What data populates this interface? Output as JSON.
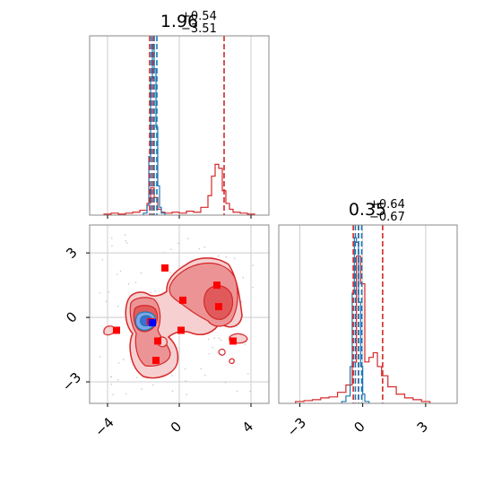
{
  "colors": {
    "red": "#d62728",
    "red_fill_dark": "#e05a5c",
    "red_fill_mid": "#ec9495",
    "red_fill_light": "#f6cfd0",
    "blue": "#1f77b4",
    "blue_fill_dark": "#3a6fd8",
    "blue_fill_light": "#7aa7e8",
    "marker_red": "#ff0000",
    "marker_blue": "#0000ff",
    "grid": "#cccccc",
    "frame": "#888888"
  },
  "chart_data": [
    {
      "type": "histogram",
      "panel": "top-left",
      "title_value": "1.96",
      "title_plus": "+0.54",
      "title_minus": "−3.51",
      "xlim": [
        -5,
        5
      ],
      "xticks": [
        -4,
        0,
        4
      ],
      "series": [
        {
          "color": "red",
          "bin_edges": [
            -4.2,
            -3.8,
            -3.4,
            -3.0,
            -2.6,
            -2.2,
            -1.8,
            -1.6,
            -1.4,
            -1.2,
            -1.0,
            -0.8,
            -0.4,
            0.0,
            0.4,
            0.8,
            1.2,
            1.6,
            1.8,
            2.0,
            2.2,
            2.4,
            2.6,
            2.8,
            3.0,
            3.4,
            3.8,
            4.2
          ],
          "counts": [
            1,
            2,
            1,
            2,
            3,
            5,
            12,
            28,
            18,
            6,
            3,
            2,
            3,
            2,
            4,
            3,
            8,
            20,
            40,
            52,
            48,
            25,
            12,
            6,
            3,
            2,
            1
          ]
        },
        {
          "color": "blue",
          "bin_edges": [
            -2.0,
            -1.8,
            -1.7,
            -1.6,
            -1.5,
            -1.4,
            -1.3,
            -1.2,
            -1.1,
            -1.0,
            -0.8
          ],
          "counts": [
            2,
            10,
            60,
            140,
            175,
            150,
            90,
            30,
            8,
            2
          ]
        }
      ],
      "ylim": [
        0,
        180
      ],
      "vlines": [
        {
          "x": -1.65,
          "color": "red"
        },
        {
          "x": -1.45,
          "color": "red"
        },
        {
          "x": 2.5,
          "color": "red"
        },
        {
          "x": -1.55,
          "color": "blue"
        },
        {
          "x": -1.4,
          "color": "blue"
        },
        {
          "x": -1.25,
          "color": "blue"
        }
      ]
    },
    {
      "type": "contour",
      "panel": "bottom-left",
      "xlim": [
        -5,
        5
      ],
      "ylim": [
        -4,
        4.3
      ],
      "xticks": [
        -4,
        0,
        4
      ],
      "yticks": [
        -3,
        0,
        3
      ],
      "scatter_red": [
        [
          -3.5,
          -0.6
        ],
        [
          -0.8,
          2.3
        ],
        [
          0.2,
          0.8
        ],
        [
          -1.2,
          -1.1
        ],
        [
          -1.3,
          -2.0
        ],
        [
          2.1,
          1.5
        ],
        [
          2.2,
          0.5
        ],
        [
          0.1,
          -0.6
        ],
        [
          3.0,
          -1.1
        ],
        [
          -1.6,
          -0.2
        ]
      ],
      "scatter_blue": [
        [
          -1.5,
          -0.25
        ]
      ]
    },
    {
      "type": "histogram",
      "panel": "bottom-right",
      "title_value": "0.35",
      "title_plus": "+0.64",
      "title_minus": "−0.67",
      "xlim": [
        -4,
        4.5
      ],
      "xticks": [
        -3,
        0,
        3
      ],
      "series": [
        {
          "color": "red",
          "bin_edges": [
            -3.2,
            -2.8,
            -2.4,
            -2.0,
            -1.6,
            -1.2,
            -0.8,
            -0.5,
            -0.3,
            -0.1,
            0.1,
            0.3,
            0.5,
            0.7,
            0.9,
            1.2,
            1.6,
            2.0,
            2.4,
            2.8,
            3.2
          ],
          "counts": [
            2,
            3,
            4,
            6,
            7,
            12,
            20,
            45,
            160,
            130,
            45,
            50,
            55,
            40,
            30,
            18,
            10,
            6,
            4,
            2
          ]
        },
        {
          "color": "blue",
          "bin_edges": [
            -1.0,
            -0.8,
            -0.6,
            -0.5,
            -0.4,
            -0.3,
            -0.2,
            -0.1,
            0.0,
            0.1,
            0.3
          ],
          "counts": [
            2,
            8,
            40,
            120,
            180,
            175,
            110,
            40,
            10,
            2
          ]
        }
      ],
      "ylim": [
        0,
        190
      ],
      "vlines": [
        {
          "x": -0.45,
          "color": "red"
        },
        {
          "x": -0.2,
          "color": "red"
        },
        {
          "x": 0.95,
          "color": "red"
        },
        {
          "x": -0.35,
          "color": "blue"
        },
        {
          "x": -0.2,
          "color": "blue"
        },
        {
          "x": -0.05,
          "color": "blue"
        }
      ]
    }
  ]
}
